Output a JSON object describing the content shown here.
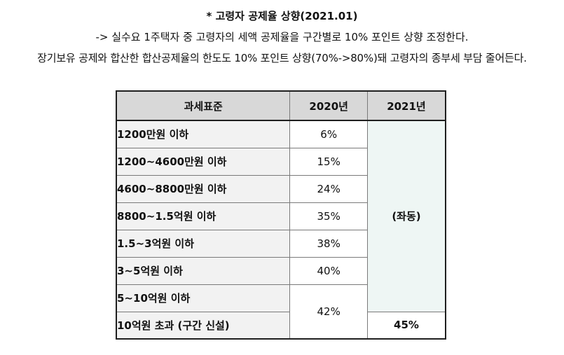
{
  "heading": {
    "title": "* 고령자 공제율 상향(2021.01)",
    "line1": "-> 실수요 1주택자 중 고령자의 세액 공제율을 구간별로 10% 포인트 상향 조정한다.",
    "line2": "장기보유 공제와 합산한 합산공제율의 한도도 10% 포인트 상향(70%->80%)돼 고령자의 종부세 부담 줄어든다."
  },
  "table": {
    "headers": [
      "과세표준",
      "2020년",
      "2021년"
    ],
    "rows": [
      {
        "label": "1200만원 이하",
        "y2020": "6%"
      },
      {
        "label": "1200~4600만원 이하",
        "y2020": "15%"
      },
      {
        "label": "4600~8800만원 이하",
        "y2020": "24%"
      },
      {
        "label": "8800~1.5억원 이하",
        "y2020": "35%"
      },
      {
        "label": "1.5~3억원 이하",
        "y2020": "38%"
      },
      {
        "label": "3~5억원 이하",
        "y2020": "40%"
      },
      {
        "label": "5~10억원 이하",
        "y2020": "42%"
      },
      {
        "label": "10억원 초과 (구간 신설)"
      }
    ],
    "merged_2021": "(좌동)",
    "new_bracket_2021": "45%"
  }
}
